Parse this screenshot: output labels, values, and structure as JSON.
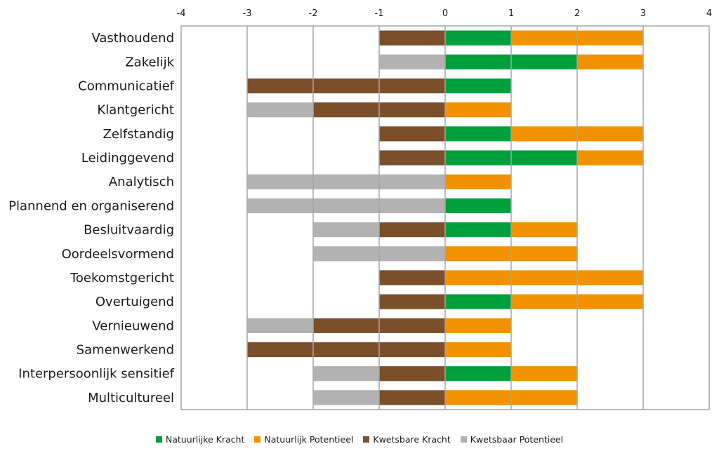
{
  "chart_data": {
    "type": "bar",
    "orientation": "horizontal",
    "stacked": true,
    "categories": [
      "Vasthoudend",
      "Zakelijk",
      "Communicatief",
      "Klantgericht",
      "Zelfstandig",
      "Leidinggevend",
      "Analytisch",
      "Plannend en organiserend",
      "Besluitvaardig",
      "Oordeelsvormend",
      "Toekomstgericht",
      "Overtuigend",
      "Vernieuwend",
      "Samenwerkend",
      "Interpersoonlijk sensitief",
      "Multicultureel"
    ],
    "series": [
      {
        "name": "Natuurlijke Kracht",
        "color": "#00a03e",
        "values": [
          1,
          2,
          1,
          0,
          1,
          2,
          0,
          1,
          1,
          0,
          0,
          1,
          0,
          0,
          1,
          0
        ]
      },
      {
        "name": "Natuurlijk Potentieel",
        "color": "#f39200",
        "values": [
          2,
          1,
          0,
          1,
          2,
          1,
          1,
          0,
          1,
          2,
          3,
          2,
          1,
          1,
          1,
          2
        ]
      },
      {
        "name": "Kwetsbare Kracht",
        "color": "#7b4f2a",
        "values": [
          -1,
          0,
          -3,
          -2,
          -1,
          -1,
          0,
          0,
          -1,
          0,
          -1,
          -1,
          -2,
          -3,
          -1,
          -1
        ]
      },
      {
        "name": "Kwetsbaar Potentieel",
        "color": "#b2b2b2",
        "values": [
          0,
          -1,
          0,
          -1,
          0,
          0,
          -3,
          -3,
          -1,
          -2,
          0,
          0,
          -1,
          0,
          -1,
          -1
        ]
      }
    ],
    "xlim": [
      -4,
      4
    ],
    "xticks": [
      "-4",
      "-3",
      "-2",
      "-1",
      "0",
      "1",
      "2",
      "3",
      "4"
    ],
    "x_axis_position": "top",
    "grid": true,
    "legend": "bottom-center"
  }
}
